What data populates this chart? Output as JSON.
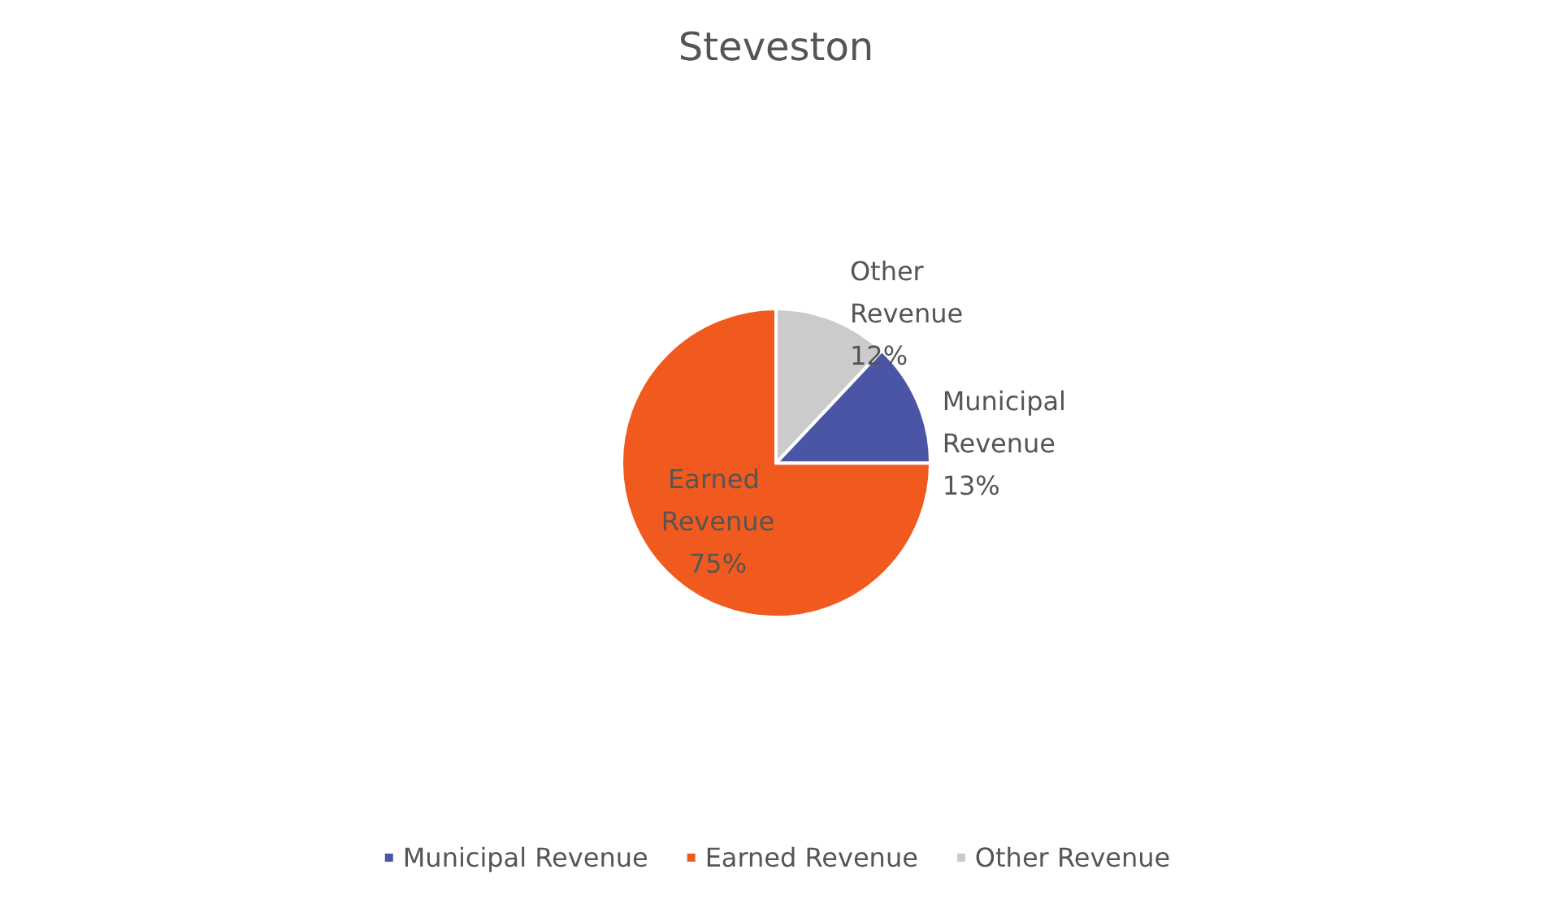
{
  "chart_data": {
    "type": "pie",
    "title": "Steveston",
    "categories": [
      "Municipal Revenue",
      "Earned Revenue",
      "Other Revenue"
    ],
    "values": [
      13,
      75,
      12
    ],
    "value_labels": [
      "13%",
      "75%",
      "12%"
    ],
    "colors": [
      "#4a55a6",
      "#f05a1e",
      "#cbcbcb"
    ],
    "legend": "bottom"
  }
}
